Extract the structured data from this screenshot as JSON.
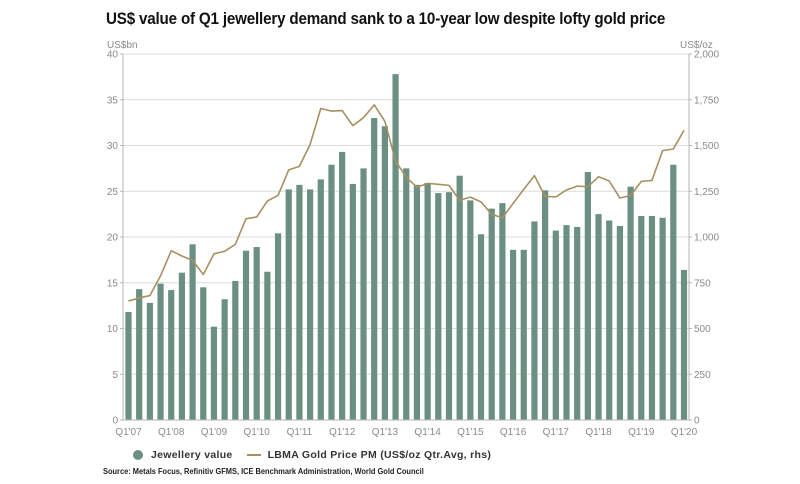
{
  "chart_data": {
    "type": "bar",
    "title": "US$ value of Q1 jewellery demand sank to a 10-year low despite lofty gold price",
    "ylabel_left": "US$bn",
    "ylabel_right": "US$/oz",
    "ylim_left": [
      0,
      40
    ],
    "ylim_right": [
      0,
      2000
    ],
    "yticks_left": [
      "0",
      "5",
      "10",
      "15",
      "20",
      "25",
      "30",
      "35",
      "40"
    ],
    "yticks_right": [
      "0",
      "250",
      "500",
      "750",
      "1,000",
      "1,250",
      "1,500",
      "1,750",
      "2,000"
    ],
    "xtick_labels": [
      "Q1'07",
      "Q1'08",
      "Q1'09",
      "Q1'10",
      "Q1'11",
      "Q1'12",
      "Q1'13",
      "Q1'14",
      "Q1'15",
      "Q1'16",
      "Q1'17",
      "Q1'18",
      "Q1'19",
      "Q1'20"
    ],
    "grid": true,
    "legend_position": "bottom-left",
    "categories": [
      "Q1'07",
      "Q2'07",
      "Q3'07",
      "Q4'07",
      "Q1'08",
      "Q2'08",
      "Q3'08",
      "Q4'08",
      "Q1'09",
      "Q2'09",
      "Q3'09",
      "Q4'09",
      "Q1'10",
      "Q2'10",
      "Q3'10",
      "Q4'10",
      "Q1'11",
      "Q2'11",
      "Q3'11",
      "Q4'11",
      "Q1'12",
      "Q2'12",
      "Q3'12",
      "Q4'12",
      "Q1'13",
      "Q2'13",
      "Q3'13",
      "Q4'13",
      "Q1'14",
      "Q2'14",
      "Q3'14",
      "Q4'14",
      "Q1'15",
      "Q2'15",
      "Q3'15",
      "Q4'15",
      "Q1'16",
      "Q2'16",
      "Q3'16",
      "Q4'16",
      "Q1'17",
      "Q2'17",
      "Q3'17",
      "Q4'17",
      "Q1'18",
      "Q2'18",
      "Q3'18",
      "Q4'18",
      "Q1'19",
      "Q2'19",
      "Q3'19",
      "Q4'19",
      "Q1'20"
    ],
    "series": [
      {
        "name": "Jewellery value",
        "type": "bar",
        "axis": "left",
        "color": "#6b8f80",
        "values": [
          11.8,
          14.3,
          12.8,
          14.9,
          14.2,
          16.1,
          19.2,
          14.5,
          10.2,
          13.2,
          15.2,
          18.5,
          18.9,
          16.2,
          20.4,
          25.2,
          25.7,
          25.2,
          26.3,
          27.9,
          29.3,
          25.8,
          27.5,
          33.0,
          32.1,
          37.8,
          27.5,
          25.7,
          25.9,
          24.8,
          24.9,
          26.7,
          24.0,
          20.3,
          23.1,
          23.7,
          18.6,
          18.6,
          21.7,
          25.1,
          20.7,
          21.3,
          21.1,
          27.1,
          22.5,
          21.8,
          21.2,
          25.5,
          22.3,
          22.3,
          22.1,
          27.9,
          16.4
        ]
      },
      {
        "name": "LBMA Gold Price PM (US$/oz Qtr.Avg, rhs)",
        "type": "line",
        "axis": "right",
        "color": "#a89060",
        "values": [
          650,
          667,
          680,
          788,
          925,
          896,
          872,
          795,
          908,
          922,
          960,
          1100,
          1109,
          1197,
          1227,
          1367,
          1386,
          1506,
          1702,
          1688,
          1691,
          1609,
          1652,
          1722,
          1632,
          1415,
          1326,
          1272,
          1293,
          1288,
          1282,
          1201,
          1218,
          1192,
          1124,
          1105,
          1183,
          1260,
          1335,
          1222,
          1219,
          1257,
          1278,
          1275,
          1329,
          1306,
          1213,
          1226,
          1304,
          1309,
          1472,
          1481,
          1583
        ]
      }
    ],
    "source": "Source: Metals Focus, Refinitiv GFMS, ICE Benchmark Administration, World Gold Council"
  },
  "legend": {
    "bar_label": "Jewellery value",
    "line_label": "LBMA Gold Price PM (US$/oz Qtr.Avg, rhs)"
  }
}
